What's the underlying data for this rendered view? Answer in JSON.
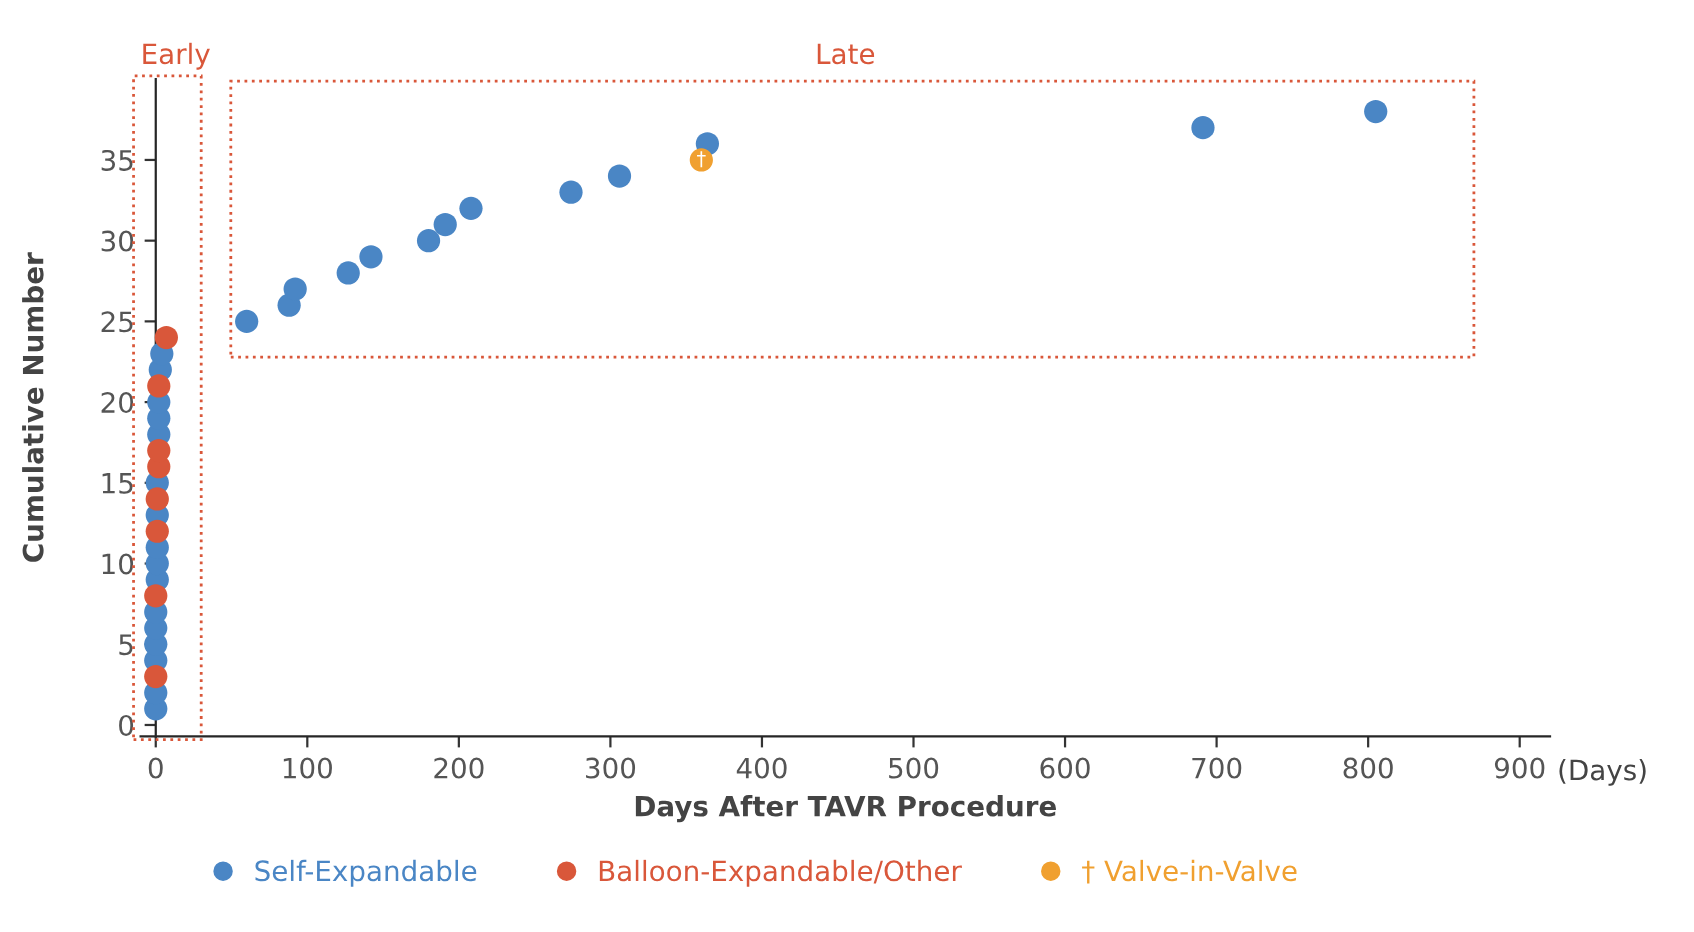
{
  "chart_data": {
    "type": "scatter",
    "xlabel": "Days After TAVR Procedure",
    "ylabel": "Cumulative Number",
    "xlim": [
      -10,
      920
    ],
    "ylim": [
      -0.7,
      40
    ],
    "xticks": [
      0,
      100,
      200,
      300,
      400,
      500,
      600,
      700,
      800,
      900
    ],
    "yticks": [
      0,
      5,
      10,
      15,
      20,
      25,
      30,
      35
    ],
    "grid": false,
    "legend": "bottom",
    "marker": "circle",
    "series": [
      {
        "name": "Self-Expandable",
        "color": "#4a86c5",
        "x": [
          0,
          0,
          0,
          0,
          0,
          0,
          1,
          1,
          1,
          1,
          1,
          2,
          2,
          2,
          3,
          4,
          60,
          88,
          92,
          127,
          142,
          180,
          191,
          208,
          274,
          306,
          364,
          691,
          805
        ],
        "values": [
          1,
          2,
          4,
          5,
          6,
          7,
          9,
          10,
          11,
          13,
          15,
          18,
          19,
          20,
          22,
          23,
          25,
          26,
          27,
          28,
          29,
          30,
          31,
          32,
          33,
          34,
          36,
          37,
          38
        ]
      },
      {
        "name": "Balloon-Expandable/Other",
        "color": "#d9573a",
        "x": [
          0,
          0,
          1,
          1,
          2,
          2,
          2,
          7
        ],
        "values": [
          3,
          8,
          12,
          14,
          16,
          17,
          21,
          24
        ]
      },
      {
        "name": "† Valve-in-Valve",
        "color": "#f0a030",
        "x": [
          360
        ],
        "values": [
          35
        ]
      }
    ],
    "annotations": [
      "Early",
      "Late",
      "(Days)",
      {
        "text": "†",
        "x": 360,
        "y": 35
      }
    ]
  }
}
